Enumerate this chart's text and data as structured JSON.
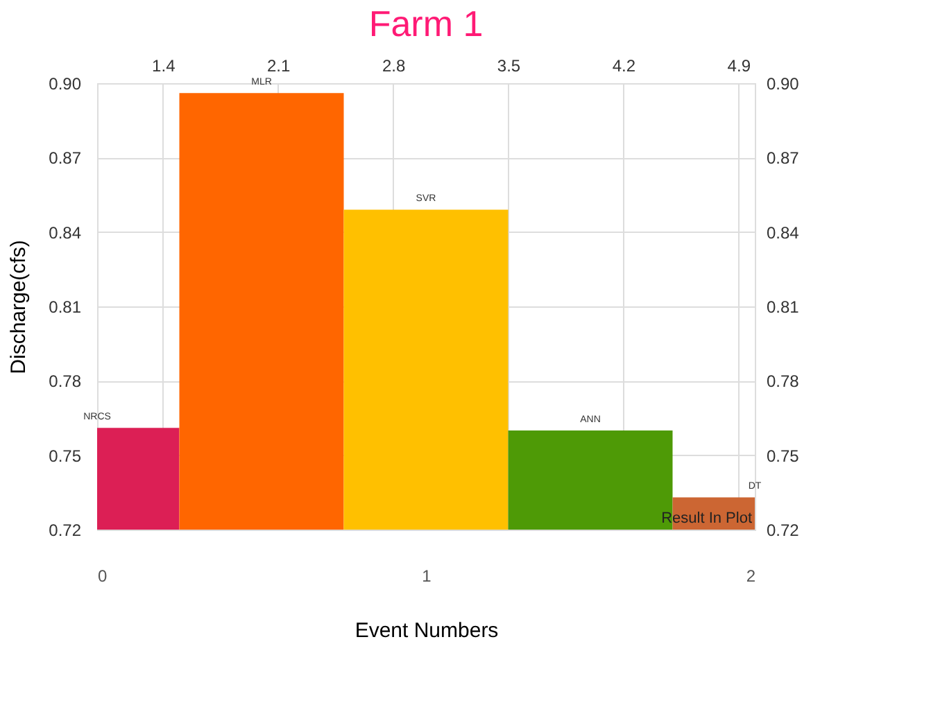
{
  "chart_data": {
    "type": "bar",
    "title": "Farm 1",
    "xlabel": "Event Numbers",
    "ylabel": "Discharge(cfs)",
    "x": [
      0,
      0.5,
      1,
      1.5,
      2
    ],
    "values": [
      0.761,
      0.896,
      0.849,
      0.76,
      0.733
    ],
    "colors": [
      "#dc1f55",
      "#ff6600",
      "#ffc000",
      "#4e9a06",
      "#cc6633"
    ],
    "xlim": [
      0,
      2
    ],
    "xticks": [
      0,
      1,
      2
    ],
    "x2lim": [
      1,
      5
    ],
    "x2ticks": [
      1.4,
      2.1,
      2.8,
      3.5,
      4.2,
      4.9
    ],
    "ylim": [
      0.72,
      0.9
    ],
    "yticks": [
      0.72,
      0.75,
      0.78,
      0.81,
      0.84,
      0.87,
      {
        "value": 0.9,
        "label": "0.90"
      }
    ],
    "y2lim": [
      0.72,
      0.9
    ],
    "y2ticks": [
      0.72,
      0.75,
      0.78,
      0.81,
      0.84,
      0.87,
      {
        "value": 0.9,
        "label": "0.90"
      }
    ],
    "annotations": [
      {
        "text": "NRCS",
        "x": 0,
        "y": 0.761
      },
      {
        "text": "MLR",
        "x": 0.5,
        "y": 0.896
      },
      {
        "text": "SVR",
        "x": 1,
        "y": 0.849
      },
      {
        "text": "ANN",
        "x": 1.5,
        "y": 0.76
      },
      {
        "text": "DT",
        "x": 2,
        "y": 0.733
      },
      "Result In Plot"
    ],
    "grid": true,
    "legend": false
  }
}
